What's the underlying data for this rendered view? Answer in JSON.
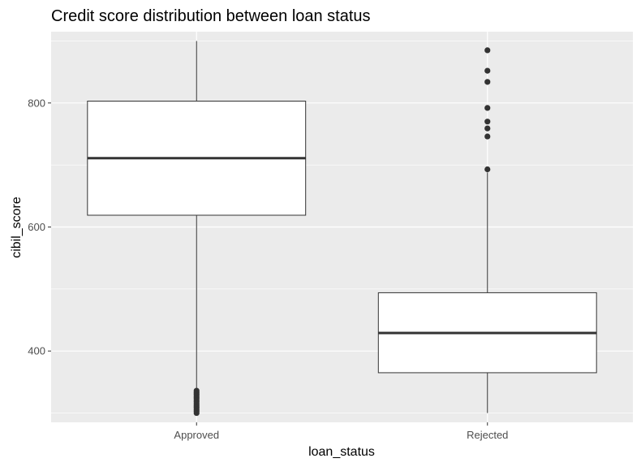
{
  "chart_data": {
    "type": "boxplot",
    "title": "Credit score distribution between loan status",
    "xlabel": "loan_status",
    "ylabel": "cibil_score",
    "categories": [
      "Approved",
      "Rejected"
    ],
    "ylim": [
      285,
      915
    ],
    "yticks": [
      400,
      600,
      800
    ],
    "grid": true,
    "boxes": [
      {
        "category": "Approved",
        "whisker_low": 336,
        "q1": 619,
        "median": 711,
        "q3": 803,
        "whisker_high": 900,
        "outliers": [
          300,
          303,
          306,
          309,
          312,
          315,
          318,
          321,
          324,
          327,
          330,
          333,
          336
        ]
      },
      {
        "category": "Rejected",
        "whisker_low": 300,
        "q1": 365,
        "median": 429,
        "q3": 494,
        "whisker_high": 688,
        "outliers": [
          693,
          746,
          759,
          770,
          792,
          834,
          852,
          885
        ]
      }
    ]
  },
  "colors": {
    "panel": "#ebebeb",
    "grid_major": "#ffffff",
    "box_fill": "#ffffff",
    "box_stroke": "#333333",
    "outlier": "#333333"
  }
}
